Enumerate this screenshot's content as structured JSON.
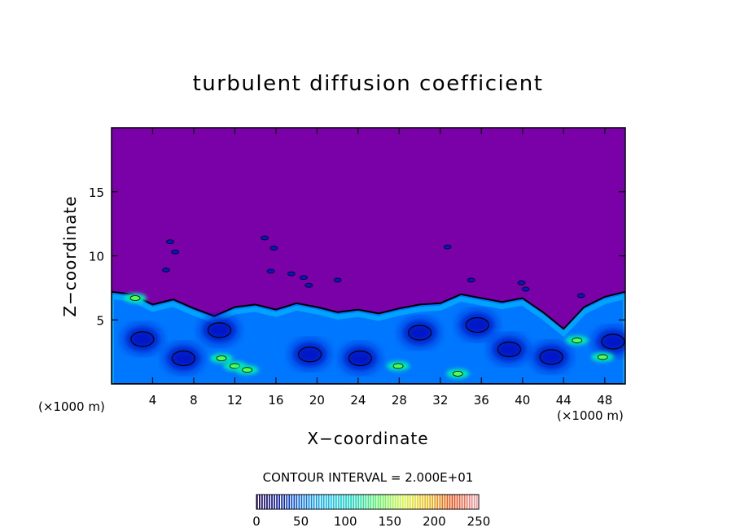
{
  "chart_data": {
    "type": "heatmap",
    "title": "turbulent diffusion coefficient",
    "xlabel": "X−coordinate",
    "ylabel": "Z−coordinate",
    "x_unit_left": "(×1000 m)",
    "x_unit_right": "(×1000 m)",
    "xlim": [
      0,
      50
    ],
    "ylim": [
      0,
      20
    ],
    "x_ticks": [
      4,
      8,
      12,
      16,
      20,
      24,
      28,
      32,
      36,
      40,
      44,
      48
    ],
    "y_ticks": [
      5,
      10,
      15
    ],
    "background_color": "#7a00a8",
    "contour_interval_label": "CONTOUR INTERVAL = 2.000E+01",
    "colorbar": {
      "min": 0,
      "max": 250,
      "tick_values": [
        0,
        50,
        100,
        150,
        200,
        250
      ],
      "colors": [
        "#1a006e",
        "#0019c8",
        "#0077ff",
        "#00c8ff",
        "#00e6b4",
        "#50ff50",
        "#d2ff32",
        "#ffb400",
        "#ff3c00",
        "#ff96a0"
      ]
    },
    "turbulent_layer_top": [
      [
        0,
        7.2
      ],
      [
        2,
        7.0
      ],
      [
        4,
        6.2
      ],
      [
        6,
        6.6
      ],
      [
        8,
        5.9
      ],
      [
        10,
        5.3
      ],
      [
        12,
        6.0
      ],
      [
        14,
        6.2
      ],
      [
        16,
        5.8
      ],
      [
        18,
        6.3
      ],
      [
        20,
        6.0
      ],
      [
        22,
        5.6
      ],
      [
        24,
        5.8
      ],
      [
        26,
        5.5
      ],
      [
        28,
        5.9
      ],
      [
        30,
        6.2
      ],
      [
        32,
        6.3
      ],
      [
        34,
        7.0
      ],
      [
        36,
        6.7
      ],
      [
        38,
        6.4
      ],
      [
        40,
        6.7
      ],
      [
        42,
        5.6
      ],
      [
        44,
        4.3
      ],
      [
        46,
        6.0
      ],
      [
        48,
        6.8
      ],
      [
        50,
        7.2
      ]
    ],
    "detached_patches": [
      [
        5.7,
        11.1
      ],
      [
        6.2,
        10.3
      ],
      [
        5.3,
        8.9
      ],
      [
        14.9,
        11.4
      ],
      [
        15.8,
        10.6
      ],
      [
        17.5,
        8.6
      ],
      [
        18.7,
        8.3
      ],
      [
        19.2,
        7.7
      ],
      [
        22.0,
        8.1
      ],
      [
        32.7,
        10.7
      ],
      [
        35.0,
        8.1
      ],
      [
        39.9,
        7.9
      ],
      [
        40.3,
        7.4
      ],
      [
        45.7,
        6.9
      ],
      [
        15.5,
        8.8
      ]
    ],
    "high_value_cores": [
      [
        10.7,
        2.0
      ],
      [
        12.0,
        1.4
      ],
      [
        13.2,
        1.1
      ],
      [
        27.9,
        1.4
      ],
      [
        33.7,
        0.8
      ],
      [
        45.3,
        3.4
      ],
      [
        47.8,
        2.1
      ],
      [
        2.3,
        6.7
      ]
    ],
    "low_value_cores": [
      [
        3.0,
        3.5
      ],
      [
        7.0,
        2.0
      ],
      [
        19.3,
        2.3
      ],
      [
        24.2,
        2.0
      ],
      [
        35.6,
        4.6
      ],
      [
        38.7,
        2.7
      ],
      [
        42.8,
        2.1
      ],
      [
        48.8,
        3.3
      ],
      [
        10.5,
        4.2
      ],
      [
        30.0,
        4.0
      ]
    ]
  }
}
